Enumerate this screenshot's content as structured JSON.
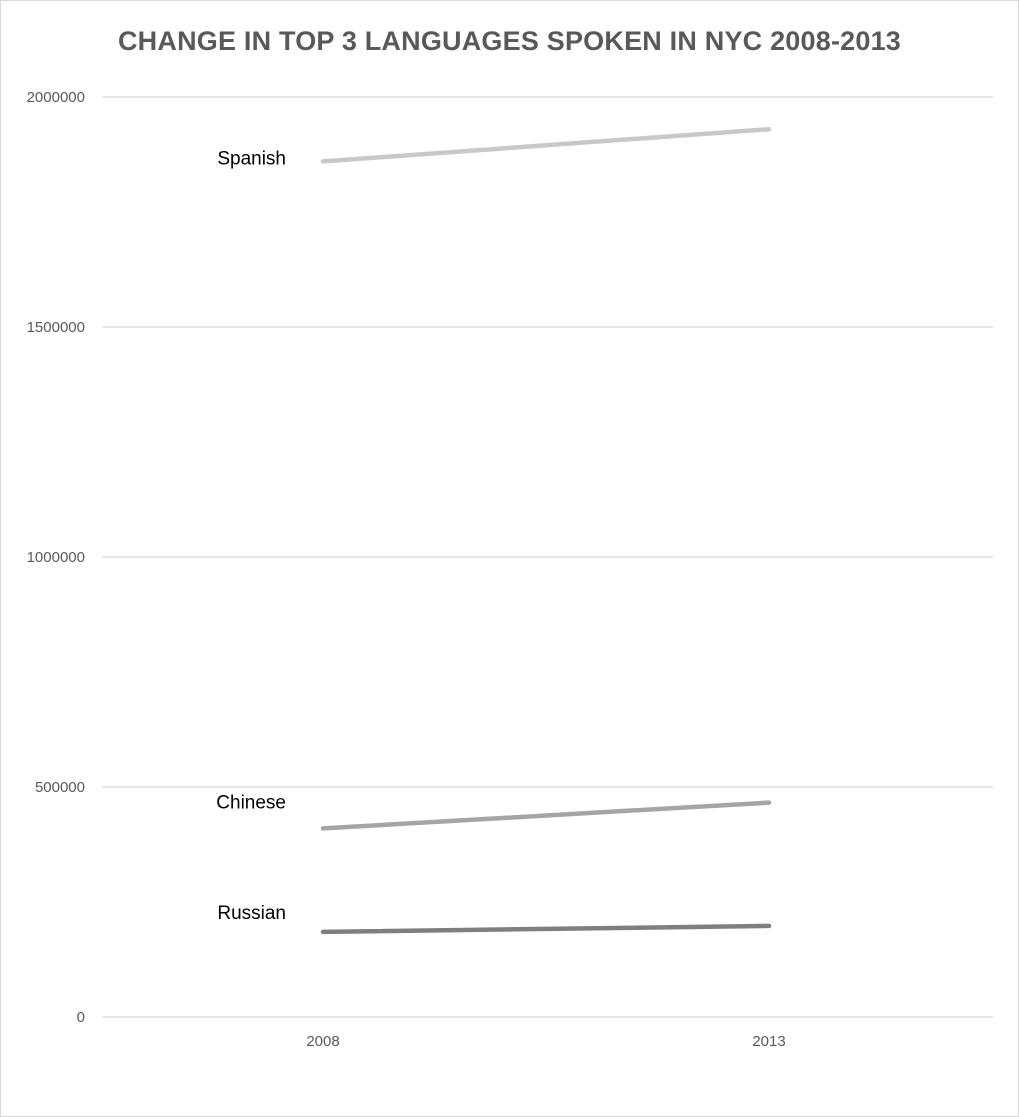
{
  "chart_data": {
    "type": "line",
    "title": "CHANGE IN TOP 3 LANGUAGES SPOKEN IN NYC 2008-2013",
    "xlabel": "",
    "ylabel": "",
    "categories": [
      "2008",
      "2013"
    ],
    "ylim": [
      0,
      2000000
    ],
    "yticks": [
      0,
      500000,
      1000000,
      1500000,
      2000000
    ],
    "ytick_labels": [
      "0",
      "500000",
      "1000000",
      "1500000",
      "2000000"
    ],
    "grid": true,
    "legend": "none (series labelled inline at left)",
    "series": [
      {
        "name": "Spanish",
        "values": [
          1860000,
          1930000
        ],
        "color": "#c8c8c8"
      },
      {
        "name": "Chinese",
        "values": [
          410000,
          466000
        ],
        "color": "#a5a5a5"
      },
      {
        "name": "Russian",
        "values": [
          185000,
          198000
        ],
        "color": "#7f7f7f"
      }
    ]
  }
}
